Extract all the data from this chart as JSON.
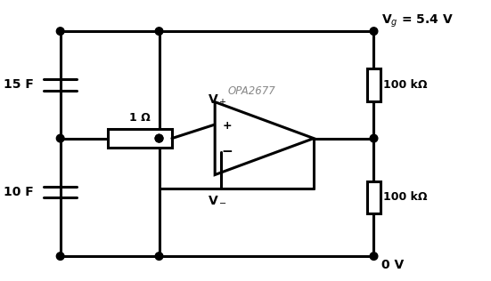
{
  "bg_color": "#ffffff",
  "line_color": "#000000",
  "line_width": 2.2,
  "fig_width": 5.51,
  "fig_height": 3.16,
  "labels": {
    "Vg": "V$_g$ = 5.4 V",
    "C1": "15 F",
    "C2": "10 F",
    "R1": "1 Ω",
    "R2": "100 kΩ",
    "R3": "100 kΩ",
    "opamp": "OPA2677",
    "Vplus": "V$_+$",
    "Vminus": "V$_-$",
    "gnd": "0 V",
    "plus_sign": "+",
    "minus_sign": "−"
  }
}
